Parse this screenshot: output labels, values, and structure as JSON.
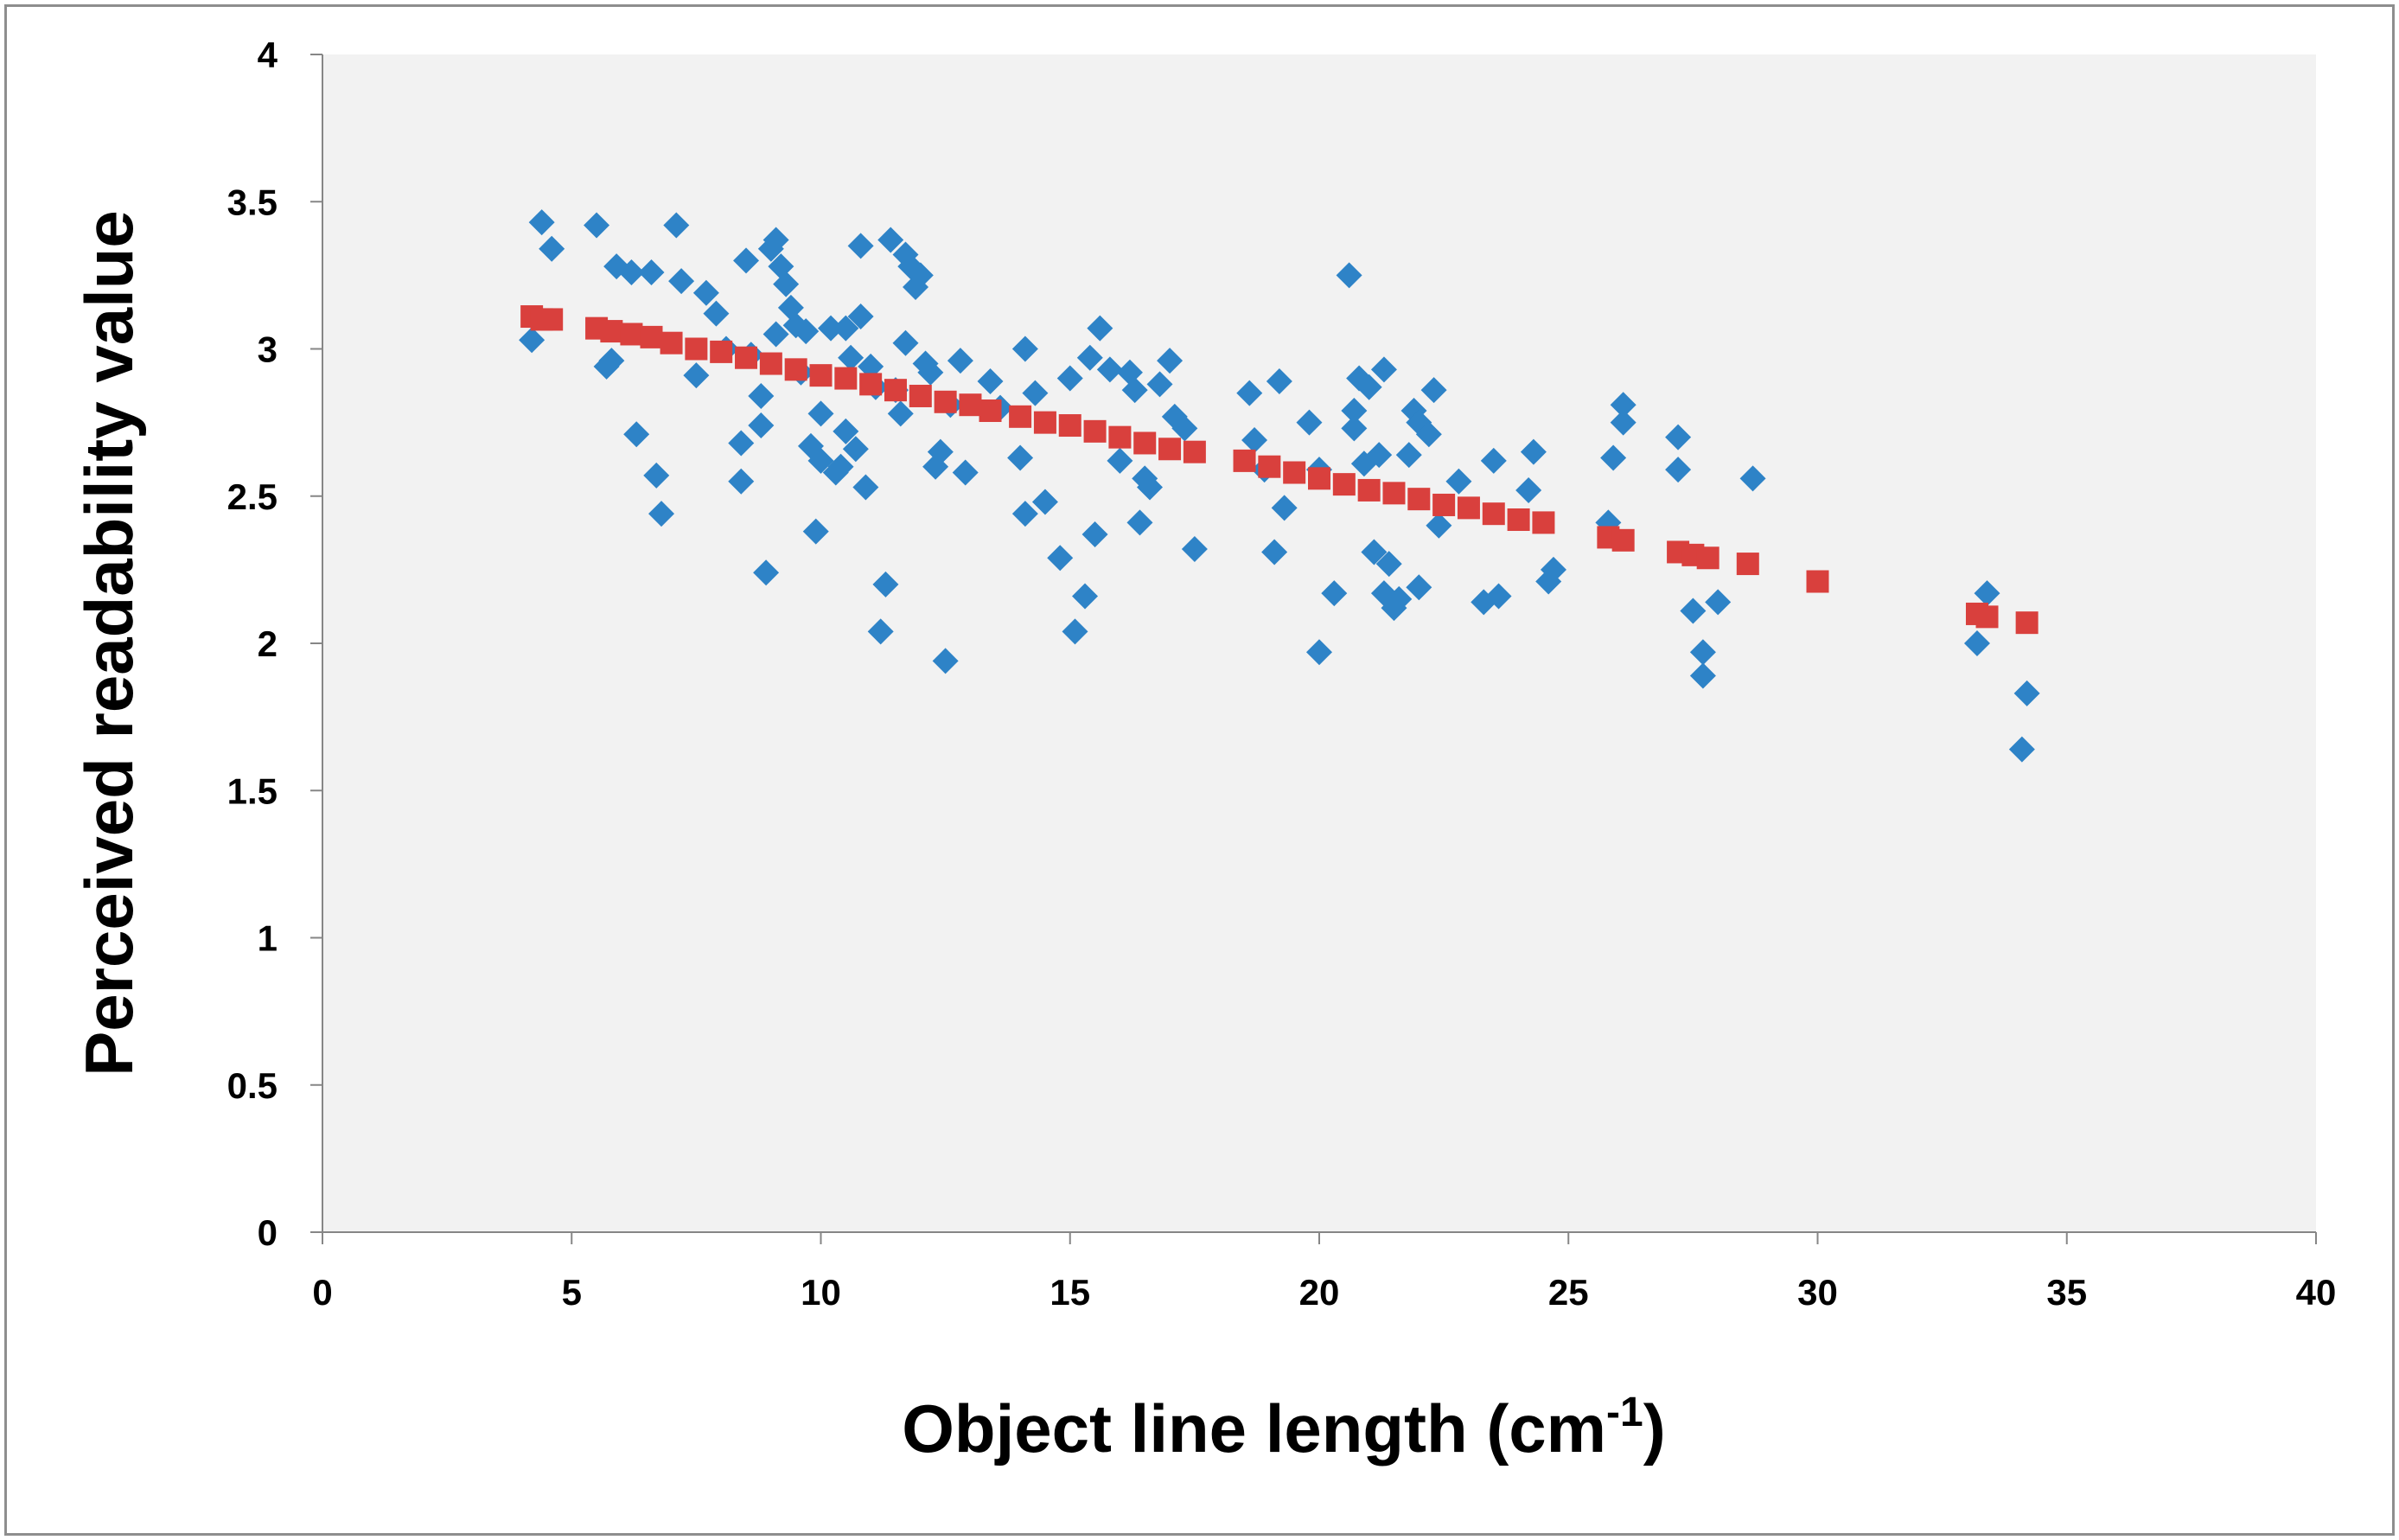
{
  "chart_data": {
    "type": "scatter",
    "xlabel": "Object line length (cm",
    "xlabel_superscript": "-1",
    "xlabel_close": ")",
    "ylabel": "Perceived readability value",
    "xlim": [
      0,
      40
    ],
    "ylim": [
      0,
      4
    ],
    "x_ticks": [
      "0",
      "5",
      "10",
      "15",
      "20",
      "25",
      "30",
      "35",
      "40"
    ],
    "y_ticks": [
      "0",
      "0.5",
      "1",
      "1.5",
      "2",
      "2.5",
      "3",
      "3.5",
      "4"
    ],
    "grid": false,
    "plot_background": "#f2f2f2",
    "series": [
      {
        "marker": "diamond",
        "color": "#2e83c7",
        "points": [
          [
            4.2,
            3.03
          ],
          [
            4.4,
            3.43
          ],
          [
            4.6,
            3.34
          ],
          [
            5.5,
            3.42
          ],
          [
            5.7,
            2.94
          ],
          [
            5.8,
            2.96
          ],
          [
            5.9,
            3.28
          ],
          [
            6.2,
            3.26
          ],
          [
            6.3,
            2.71
          ],
          [
            6.6,
            3.26
          ],
          [
            6.7,
            2.57
          ],
          [
            6.8,
            2.44
          ],
          [
            7.1,
            3.42
          ],
          [
            7.2,
            3.23
          ],
          [
            7.5,
            2.91
          ],
          [
            7.7,
            3.19
          ],
          [
            7.9,
            3.12
          ],
          [
            8.1,
            3.0
          ],
          [
            8.4,
            2.68
          ],
          [
            8.4,
            2.55
          ],
          [
            8.5,
            3.3
          ],
          [
            8.6,
            2.98
          ],
          [
            8.8,
            2.74
          ],
          [
            8.8,
            2.84
          ],
          [
            8.9,
            2.24
          ],
          [
            9.0,
            3.34
          ],
          [
            9.1,
            3.37
          ],
          [
            9.1,
            3.05
          ],
          [
            9.2,
            3.28
          ],
          [
            9.3,
            3.22
          ],
          [
            9.4,
            3.14
          ],
          [
            9.5,
            3.08
          ],
          [
            9.6,
            2.92
          ],
          [
            9.7,
            3.06
          ],
          [
            9.8,
            2.67
          ],
          [
            9.9,
            2.38
          ],
          [
            10.0,
            2.78
          ],
          [
            10.0,
            2.62
          ],
          [
            10.2,
            3.07
          ],
          [
            10.3,
            2.58
          ],
          [
            10.4,
            2.6
          ],
          [
            10.5,
            3.07
          ],
          [
            10.5,
            2.72
          ],
          [
            10.6,
            2.97
          ],
          [
            10.7,
            2.66
          ],
          [
            10.8,
            3.35
          ],
          [
            10.8,
            3.11
          ],
          [
            10.9,
            2.53
          ],
          [
            11.0,
            2.94
          ],
          [
            11.1,
            2.87
          ],
          [
            11.2,
            2.04
          ],
          [
            11.3,
            2.2
          ],
          [
            11.4,
            3.37
          ],
          [
            11.5,
            2.86
          ],
          [
            11.6,
            2.78
          ],
          [
            11.7,
            3.02
          ],
          [
            11.7,
            3.32
          ],
          [
            11.8,
            3.28
          ],
          [
            11.9,
            3.21
          ],
          [
            12.0,
            3.25
          ],
          [
            12.1,
            2.95
          ],
          [
            12.2,
            2.92
          ],
          [
            12.3,
            2.6
          ],
          [
            12.4,
            2.65
          ],
          [
            12.5,
            1.94
          ],
          [
            12.6,
            2.81
          ],
          [
            12.8,
            2.96
          ],
          [
            12.9,
            2.58
          ],
          [
            13.4,
            2.89
          ],
          [
            13.6,
            2.8
          ],
          [
            14.0,
            2.63
          ],
          [
            14.1,
            3.0
          ],
          [
            14.1,
            2.44
          ],
          [
            14.3,
            2.85
          ],
          [
            14.5,
            2.48
          ],
          [
            14.8,
            2.29
          ],
          [
            15.0,
            2.9
          ],
          [
            15.1,
            2.04
          ],
          [
            15.3,
            2.16
          ],
          [
            15.4,
            2.97
          ],
          [
            15.5,
            2.37
          ],
          [
            15.6,
            3.07
          ],
          [
            15.8,
            2.93
          ],
          [
            16.0,
            2.62
          ],
          [
            16.2,
            2.92
          ],
          [
            16.3,
            2.86
          ],
          [
            16.4,
            2.41
          ],
          [
            16.5,
            2.56
          ],
          [
            16.6,
            2.53
          ],
          [
            16.8,
            2.88
          ],
          [
            17.0,
            2.96
          ],
          [
            17.1,
            2.77
          ],
          [
            17.3,
            2.73
          ],
          [
            17.5,
            2.32
          ],
          [
            18.6,
            2.85
          ],
          [
            18.7,
            2.69
          ],
          [
            18.9,
            2.59
          ],
          [
            19.1,
            2.31
          ],
          [
            19.2,
            2.89
          ],
          [
            19.3,
            2.46
          ],
          [
            19.8,
            2.75
          ],
          [
            20.0,
            2.59
          ],
          [
            20.0,
            1.97
          ],
          [
            20.3,
            2.17
          ],
          [
            20.6,
            3.25
          ],
          [
            20.7,
            2.73
          ],
          [
            20.7,
            2.79
          ],
          [
            20.8,
            2.9
          ],
          [
            20.9,
            2.61
          ],
          [
            21.0,
            2.87
          ],
          [
            21.1,
            2.31
          ],
          [
            21.2,
            2.64
          ],
          [
            21.3,
            2.93
          ],
          [
            21.3,
            2.17
          ],
          [
            21.4,
            2.27
          ],
          [
            21.5,
            2.12
          ],
          [
            21.6,
            2.15
          ],
          [
            21.8,
            2.64
          ],
          [
            21.9,
            2.79
          ],
          [
            22.0,
            2.75
          ],
          [
            22.0,
            2.19
          ],
          [
            22.2,
            2.71
          ],
          [
            22.3,
            2.86
          ],
          [
            22.4,
            2.4
          ],
          [
            22.8,
            2.55
          ],
          [
            23.3,
            2.14
          ],
          [
            23.5,
            2.62
          ],
          [
            23.6,
            2.16
          ],
          [
            24.2,
            2.52
          ],
          [
            24.3,
            2.65
          ],
          [
            24.6,
            2.21
          ],
          [
            24.7,
            2.25
          ],
          [
            25.8,
            2.41
          ],
          [
            25.9,
            2.63
          ],
          [
            26.1,
            2.81
          ],
          [
            26.1,
            2.75
          ],
          [
            27.2,
            2.7
          ],
          [
            27.2,
            2.59
          ],
          [
            27.5,
            2.11
          ],
          [
            27.7,
            1.97
          ],
          [
            27.7,
            1.89
          ],
          [
            28.0,
            2.14
          ],
          [
            28.7,
            2.56
          ],
          [
            33.2,
            2.0
          ],
          [
            33.4,
            2.17
          ],
          [
            34.1,
            1.64
          ],
          [
            34.2,
            1.83
          ]
        ]
      },
      {
        "marker": "square",
        "color": "#d9403d",
        "points": [
          [
            4.2,
            3.11
          ],
          [
            4.4,
            3.1
          ],
          [
            4.6,
            3.1
          ],
          [
            5.5,
            3.07
          ],
          [
            5.8,
            3.06
          ],
          [
            6.2,
            3.05
          ],
          [
            6.6,
            3.04
          ],
          [
            7.0,
            3.02
          ],
          [
            7.5,
            3.0
          ],
          [
            8.0,
            2.99
          ],
          [
            8.5,
            2.97
          ],
          [
            9.0,
            2.95
          ],
          [
            9.5,
            2.93
          ],
          [
            10.0,
            2.91
          ],
          [
            10.5,
            2.9
          ],
          [
            11.0,
            2.88
          ],
          [
            11.5,
            2.86
          ],
          [
            12.0,
            2.84
          ],
          [
            12.5,
            2.82
          ],
          [
            13.0,
            2.81
          ],
          [
            13.4,
            2.79
          ],
          [
            14.0,
            2.77
          ],
          [
            14.5,
            2.75
          ],
          [
            15.0,
            2.74
          ],
          [
            15.5,
            2.72
          ],
          [
            16.0,
            2.7
          ],
          [
            16.5,
            2.68
          ],
          [
            17.0,
            2.66
          ],
          [
            17.5,
            2.65
          ],
          [
            18.5,
            2.62
          ],
          [
            19.0,
            2.6
          ],
          [
            19.5,
            2.58
          ],
          [
            20.0,
            2.56
          ],
          [
            20.5,
            2.54
          ],
          [
            21.0,
            2.52
          ],
          [
            21.5,
            2.51
          ],
          [
            22.0,
            2.49
          ],
          [
            22.5,
            2.47
          ],
          [
            23.0,
            2.46
          ],
          [
            23.5,
            2.44
          ],
          [
            24.0,
            2.42
          ],
          [
            24.5,
            2.41
          ],
          [
            25.8,
            2.36
          ],
          [
            26.1,
            2.35
          ],
          [
            27.2,
            2.31
          ],
          [
            27.5,
            2.3
          ],
          [
            27.8,
            2.29
          ],
          [
            28.6,
            2.27
          ],
          [
            30.0,
            2.21
          ],
          [
            33.2,
            2.1
          ],
          [
            33.4,
            2.09
          ],
          [
            34.2,
            2.07
          ]
        ]
      }
    ]
  }
}
